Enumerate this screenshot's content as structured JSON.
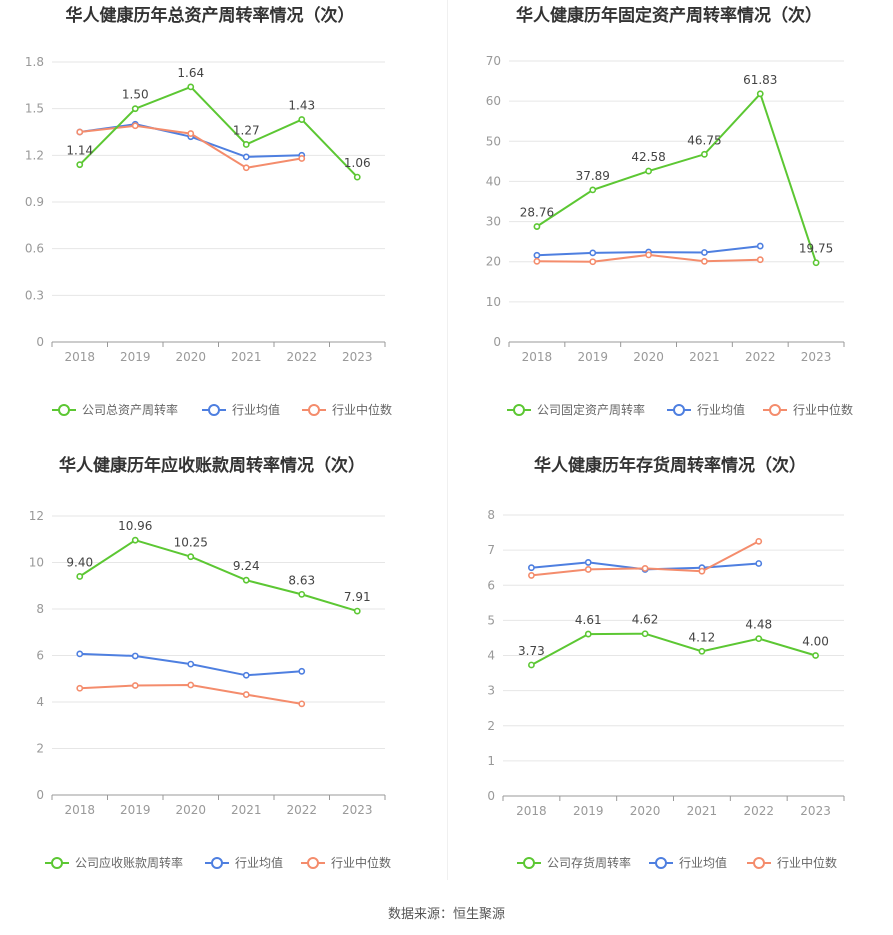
{
  "colors": {
    "company": "#5cc733",
    "average": "#4e7fe0",
    "median": "#f48c6c",
    "grid": "#e6e6e6",
    "axis": "#999999",
    "tick_text": "#999999",
    "title": "#333333",
    "label": "#444444"
  },
  "source": "数据来源：恒生聚源",
  "chart_data": [
    {
      "type": "line",
      "title": "华人健康历年总资产周转率情况（次）",
      "categories": [
        "2018",
        "2019",
        "2020",
        "2021",
        "2022",
        "2023"
      ],
      "yticks": [
        "0",
        "0.3",
        "0.6",
        "0.9",
        "1.2",
        "1.5",
        "1.8"
      ],
      "ylim": [
        0,
        1.8
      ],
      "grid": true,
      "legend_position": "bottom",
      "series": [
        {
          "name": "公司总资产周转率",
          "role": "company",
          "values": [
            1.14,
            1.5,
            1.64,
            1.27,
            1.43,
            1.06
          ],
          "labels": [
            "1.14",
            "1.50",
            "1.64",
            "1.27",
            "1.43",
            "1.06"
          ]
        },
        {
          "name": "行业均值",
          "role": "average",
          "values": [
            1.35,
            1.4,
            1.32,
            1.19,
            1.2,
            null
          ]
        },
        {
          "name": "行业中位数",
          "role": "median",
          "values": [
            1.35,
            1.39,
            1.34,
            1.12,
            1.18,
            null
          ]
        }
      ]
    },
    {
      "type": "line",
      "title": "华人健康历年固定资产周转率情况（次）",
      "categories": [
        "2018",
        "2019",
        "2020",
        "2021",
        "2022",
        "2023"
      ],
      "yticks": [
        "0",
        "10",
        "20",
        "30",
        "40",
        "50",
        "60",
        "70"
      ],
      "ylim": [
        0,
        70
      ],
      "grid": true,
      "legend_position": "bottom",
      "series": [
        {
          "name": "公司固定资产周转率",
          "role": "company",
          "values": [
            28.76,
            37.89,
            42.58,
            46.75,
            61.83,
            19.75
          ],
          "labels": [
            "28.76",
            "37.89",
            "42.58",
            "46.75",
            "61.83",
            "19.75"
          ]
        },
        {
          "name": "行业均值",
          "role": "average",
          "values": [
            21.6,
            22.2,
            22.4,
            22.3,
            23.9,
            null
          ]
        },
        {
          "name": "行业中位数",
          "role": "median",
          "values": [
            20.1,
            20.0,
            21.7,
            20.1,
            20.5,
            null
          ]
        }
      ]
    },
    {
      "type": "line",
      "title": "华人健康历年应收账款周转率情况（次）",
      "categories": [
        "2018",
        "2019",
        "2020",
        "2021",
        "2022",
        "2023"
      ],
      "yticks": [
        "0",
        "2",
        "4",
        "6",
        "8",
        "10",
        "12"
      ],
      "ylim": [
        0,
        12
      ],
      "grid": true,
      "legend_position": "bottom",
      "series": [
        {
          "name": "公司应收账款周转率",
          "role": "company",
          "values": [
            9.4,
            10.96,
            10.25,
            9.24,
            8.63,
            7.91
          ],
          "labels": [
            "9.40",
            "10.96",
            "10.25",
            "9.24",
            "8.63",
            "7.91"
          ]
        },
        {
          "name": "行业均值",
          "role": "average",
          "values": [
            6.07,
            5.98,
            5.63,
            5.15,
            5.32,
            null
          ]
        },
        {
          "name": "行业中位数",
          "role": "median",
          "values": [
            4.59,
            4.71,
            4.73,
            4.32,
            3.92,
            null
          ]
        }
      ]
    },
    {
      "type": "line",
      "title": "华人健康历年存货周转率情况（次）",
      "categories": [
        "2018",
        "2019",
        "2020",
        "2021",
        "2022",
        "2023"
      ],
      "yticks": [
        "0",
        "1",
        "2",
        "3",
        "4",
        "5",
        "6",
        "7",
        "8"
      ],
      "ylim": [
        0,
        8
      ],
      "grid": true,
      "legend_position": "bottom",
      "series": [
        {
          "name": "公司存货周转率",
          "role": "company",
          "values": [
            3.73,
            4.61,
            4.62,
            4.12,
            4.48,
            4.0
          ],
          "labels": [
            "3.73",
            "4.61",
            "4.62",
            "4.12",
            "4.48",
            "4.00"
          ]
        },
        {
          "name": "行业均值",
          "role": "average",
          "values": [
            6.5,
            6.65,
            6.45,
            6.5,
            6.62,
            null
          ]
        },
        {
          "name": "行业中位数",
          "role": "median",
          "values": [
            6.28,
            6.45,
            6.48,
            6.4,
            7.25,
            null
          ]
        }
      ]
    }
  ]
}
